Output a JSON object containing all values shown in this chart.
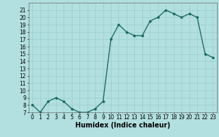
{
  "x": [
    0,
    1,
    2,
    3,
    4,
    5,
    6,
    7,
    8,
    9,
    10,
    11,
    12,
    13,
    14,
    15,
    16,
    17,
    18,
    19,
    20,
    21,
    22,
    23
  ],
  "y": [
    8,
    7,
    8.5,
    9,
    8.5,
    7.5,
    7,
    7,
    7.5,
    8.5,
    17,
    19,
    18,
    17.5,
    17.5,
    19.5,
    20,
    21,
    20.5,
    20,
    20.5,
    20,
    15,
    14.5
  ],
  "line_color": "#1a6b5e",
  "bg_color": "#b2dfdf",
  "grid_color": "#99cccc",
  "xlabel": "Humidex (Indice chaleur)",
  "ylim": [
    7,
    22
  ],
  "xlim": [
    -0.5,
    23.5
  ],
  "yticks": [
    7,
    8,
    9,
    10,
    11,
    12,
    13,
    14,
    15,
    16,
    17,
    18,
    19,
    20,
    21
  ],
  "xticks": [
    0,
    1,
    2,
    3,
    4,
    5,
    6,
    7,
    8,
    9,
    10,
    11,
    12,
    13,
    14,
    15,
    16,
    17,
    18,
    19,
    20,
    21,
    22,
    23
  ],
  "marker": "o",
  "marker_size": 1.8,
  "line_width": 1.0,
  "xlabel_fontsize": 7,
  "tick_fontsize": 5.5
}
